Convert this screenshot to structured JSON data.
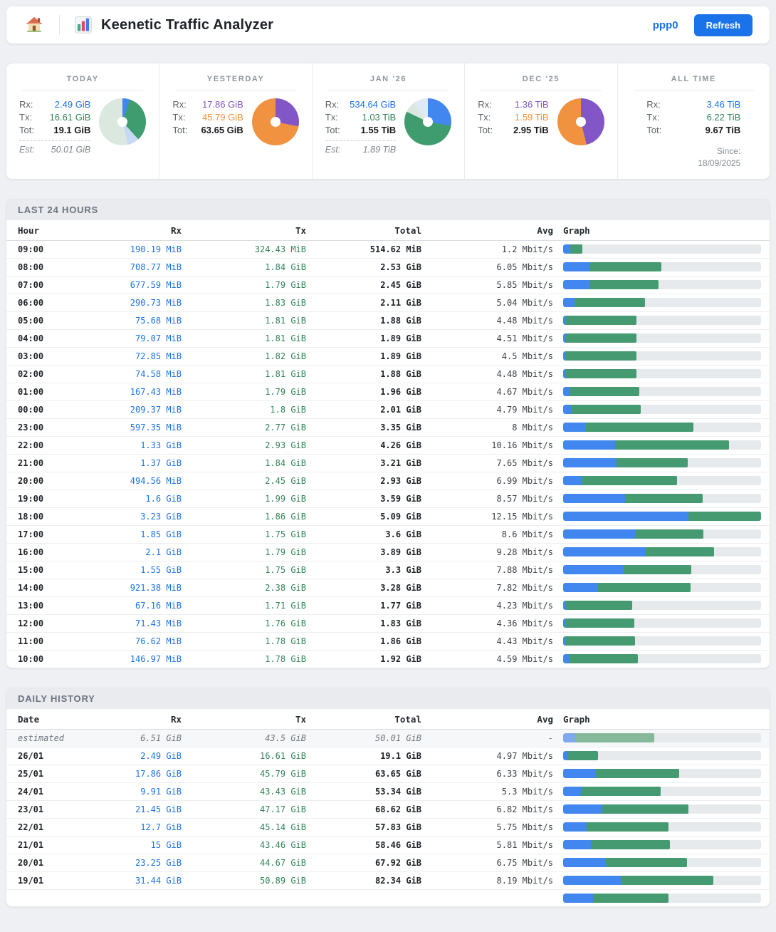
{
  "header": {
    "title": "Keenetic Traffic Analyzer",
    "interface_label": "ppp0",
    "refresh_label": "Refresh"
  },
  "colors": {
    "accent_blue": "#1a73e8",
    "rx_text": "#1a73e8",
    "tx_text": "#2f855a",
    "purple_text": "#7e57c2",
    "orange_text": "#ef8f3a",
    "bar_rx": "#4287f0",
    "bar_tx": "#459a71",
    "bar_rx_pale": "#7fa9ea",
    "bar_tx_pale": "#85b999"
  },
  "cards": [
    {
      "title": "TODAY",
      "stats": [
        {
          "label": "Rx:",
          "value": "2.49 GiB",
          "color": "#1a73e8"
        },
        {
          "label": "Tx:",
          "value": "16.61 GiB",
          "color": "#2f855a"
        },
        {
          "label": "Tot:",
          "value": "19.1 GiB",
          "bold": true
        }
      ],
      "est": {
        "label": "Est:",
        "value": "50.01 GiB"
      },
      "donut": [
        {
          "color": "#4287f0",
          "pct": 5.0
        },
        {
          "color": "#3f9c6e",
          "pct": 33.2
        },
        {
          "color": "#c7d9f5",
          "pct": 8.0
        },
        {
          "color": "#dbe8df",
          "pct": 53.8
        }
      ]
    },
    {
      "title": "YESTERDAY",
      "stats": [
        {
          "label": "Rx:",
          "value": "17.86 GiB",
          "color": "#7e57c2"
        },
        {
          "label": "Tx:",
          "value": "45.79 GiB",
          "color": "#ef8f3a"
        },
        {
          "label": "Tot:",
          "value": "63.65 GiB",
          "bold": true
        }
      ],
      "donut": [
        {
          "color": "#8356c8",
          "pct": 28.1
        },
        {
          "color": "#f0923f",
          "pct": 71.9
        }
      ]
    },
    {
      "title": "JAN '26",
      "stats": [
        {
          "label": "Rx:",
          "value": "534.64 GiB",
          "color": "#1a73e8"
        },
        {
          "label": "Tx:",
          "value": "1.03 TiB",
          "color": "#2f855a"
        },
        {
          "label": "Tot:",
          "value": "1.55 TiB",
          "bold": true
        }
      ],
      "est": {
        "label": "Est:",
        "value": "1.89 TiB"
      },
      "donut": [
        {
          "color": "#4287f0",
          "pct": 27.6
        },
        {
          "color": "#3f9c6e",
          "pct": 54.5
        },
        {
          "color": "#dbe8df",
          "pct": 7.4
        },
        {
          "color": "#dfe9f6",
          "pct": 10.5
        }
      ]
    },
    {
      "title": "DEC '25",
      "stats": [
        {
          "label": "Rx:",
          "value": "1.36 TiB",
          "color": "#7e57c2"
        },
        {
          "label": "Tx:",
          "value": "1.59 TiB",
          "color": "#ef8f3a"
        },
        {
          "label": "Tot:",
          "value": "2.95 TiB",
          "bold": true
        }
      ],
      "donut": [
        {
          "color": "#8356c8",
          "pct": 46.1
        },
        {
          "color": "#f0923f",
          "pct": 53.9
        }
      ]
    },
    {
      "title": "ALL TIME",
      "stats": [
        {
          "label": "Rx:",
          "value": "3.46 TiB",
          "color": "#1a73e8"
        },
        {
          "label": "Tx:",
          "value": "6.22 TiB",
          "color": "#2f855a"
        },
        {
          "label": "Tot:",
          "value": "9.67 TiB",
          "bold": true
        }
      ],
      "since": {
        "label": "Since:",
        "value": "18/09/2025"
      }
    }
  ],
  "hourly": {
    "section_title": "LAST 24 HOURS",
    "columns": [
      "Hour",
      "Rx",
      "Tx",
      "Total",
      "Avg",
      "Graph"
    ],
    "scale_max_gib": 5.09,
    "rows": [
      {
        "label": "09:00",
        "rx": "190.19 MiB",
        "tx": "324.43 MiB",
        "total": "514.62 MiB",
        "avg": "1.2 Mbit/s",
        "rx_gib": 0.186,
        "tx_gib": 0.317
      },
      {
        "label": "08:00",
        "rx": "708.77 MiB",
        "tx": "1.84 GiB",
        "total": "2.53 GiB",
        "avg": "6.05 Mbit/s",
        "rx_gib": 0.692,
        "tx_gib": 1.84
      },
      {
        "label": "07:00",
        "rx": "677.59 MiB",
        "tx": "1.79 GiB",
        "total": "2.45 GiB",
        "avg": "5.85 Mbit/s",
        "rx_gib": 0.662,
        "tx_gib": 1.79
      },
      {
        "label": "06:00",
        "rx": "290.73 MiB",
        "tx": "1.83 GiB",
        "total": "2.11 GiB",
        "avg": "5.04 Mbit/s",
        "rx_gib": 0.284,
        "tx_gib": 1.83
      },
      {
        "label": "05:00",
        "rx": "75.68 MiB",
        "tx": "1.81 GiB",
        "total": "1.88 GiB",
        "avg": "4.48 Mbit/s",
        "rx_gib": 0.074,
        "tx_gib": 1.81
      },
      {
        "label": "04:00",
        "rx": "79.07 MiB",
        "tx": "1.81 GiB",
        "total": "1.89 GiB",
        "avg": "4.51 Mbit/s",
        "rx_gib": 0.077,
        "tx_gib": 1.81
      },
      {
        "label": "03:00",
        "rx": "72.85 MiB",
        "tx": "1.82 GiB",
        "total": "1.89 GiB",
        "avg": "4.5 Mbit/s",
        "rx_gib": 0.071,
        "tx_gib": 1.82
      },
      {
        "label": "02:00",
        "rx": "74.58 MiB",
        "tx": "1.81 GiB",
        "total": "1.88 GiB",
        "avg": "4.48 Mbit/s",
        "rx_gib": 0.073,
        "tx_gib": 1.81
      },
      {
        "label": "01:00",
        "rx": "167.43 MiB",
        "tx": "1.79 GiB",
        "total": "1.96 GiB",
        "avg": "4.67 Mbit/s",
        "rx_gib": 0.164,
        "tx_gib": 1.79
      },
      {
        "label": "00:00",
        "rx": "209.37 MiB",
        "tx": "1.8 GiB",
        "total": "2.01 GiB",
        "avg": "4.79 Mbit/s",
        "rx_gib": 0.204,
        "tx_gib": 1.8
      },
      {
        "label": "23:00",
        "rx": "597.35 MiB",
        "tx": "2.77 GiB",
        "total": "3.35 GiB",
        "avg": "8 Mbit/s",
        "rx_gib": 0.583,
        "tx_gib": 2.77
      },
      {
        "label": "22:00",
        "rx": "1.33 GiB",
        "tx": "2.93 GiB",
        "total": "4.26 GiB",
        "avg": "10.16 Mbit/s",
        "rx_gib": 1.33,
        "tx_gib": 2.93
      },
      {
        "label": "21:00",
        "rx": "1.37 GiB",
        "tx": "1.84 GiB",
        "total": "3.21 GiB",
        "avg": "7.65 Mbit/s",
        "rx_gib": 1.37,
        "tx_gib": 1.84
      },
      {
        "label": "20:00",
        "rx": "494.56 MiB",
        "tx": "2.45 GiB",
        "total": "2.93 GiB",
        "avg": "6.99 Mbit/s",
        "rx_gib": 0.483,
        "tx_gib": 2.45
      },
      {
        "label": "19:00",
        "rx": "1.6 GiB",
        "tx": "1.99 GiB",
        "total": "3.59 GiB",
        "avg": "8.57 Mbit/s",
        "rx_gib": 1.6,
        "tx_gib": 1.99
      },
      {
        "label": "18:00",
        "rx": "3.23 GiB",
        "tx": "1.86 GiB",
        "total": "5.09 GiB",
        "avg": "12.15 Mbit/s",
        "rx_gib": 3.23,
        "tx_gib": 1.86
      },
      {
        "label": "17:00",
        "rx": "1.85 GiB",
        "tx": "1.75 GiB",
        "total": "3.6 GiB",
        "avg": "8.6 Mbit/s",
        "rx_gib": 1.85,
        "tx_gib": 1.75
      },
      {
        "label": "16:00",
        "rx": "2.1 GiB",
        "tx": "1.79 GiB",
        "total": "3.89 GiB",
        "avg": "9.28 Mbit/s",
        "rx_gib": 2.1,
        "tx_gib": 1.79
      },
      {
        "label": "15:00",
        "rx": "1.55 GiB",
        "tx": "1.75 GiB",
        "total": "3.3 GiB",
        "avg": "7.88 Mbit/s",
        "rx_gib": 1.55,
        "tx_gib": 1.75
      },
      {
        "label": "14:00",
        "rx": "921.38 MiB",
        "tx": "2.38 GiB",
        "total": "3.28 GiB",
        "avg": "7.82 Mbit/s",
        "rx_gib": 0.9,
        "tx_gib": 2.38
      },
      {
        "label": "13:00",
        "rx": "67.16 MiB",
        "tx": "1.71 GiB",
        "total": "1.77 GiB",
        "avg": "4.23 Mbit/s",
        "rx_gib": 0.066,
        "tx_gib": 1.71
      },
      {
        "label": "12:00",
        "rx": "71.43 MiB",
        "tx": "1.76 GiB",
        "total": "1.83 GiB",
        "avg": "4.36 Mbit/s",
        "rx_gib": 0.07,
        "tx_gib": 1.76
      },
      {
        "label": "11:00",
        "rx": "76.62 MiB",
        "tx": "1.78 GiB",
        "total": "1.86 GiB",
        "avg": "4.43 Mbit/s",
        "rx_gib": 0.075,
        "tx_gib": 1.78
      },
      {
        "label": "10:00",
        "rx": "146.97 MiB",
        "tx": "1.78 GiB",
        "total": "1.92 GiB",
        "avg": "4.59 Mbit/s",
        "rx_gib": 0.144,
        "tx_gib": 1.78
      }
    ]
  },
  "daily": {
    "section_title": "DAILY HISTORY",
    "columns": [
      "Date",
      "Rx",
      "Tx",
      "Total",
      "Avg",
      "Graph"
    ],
    "scale_max_gib": 108.3,
    "rows": [
      {
        "label": "estimated",
        "rx": "6.51 GiB",
        "tx": "43.5 GiB",
        "total": "50.01 GiB",
        "avg": "-",
        "rx_gib": 6.51,
        "tx_gib": 43.5,
        "estimated": true
      },
      {
        "label": "26/01",
        "rx": "2.49 GiB",
        "tx": "16.61 GiB",
        "total": "19.1 GiB",
        "avg": "4.97 Mbit/s",
        "rx_gib": 2.49,
        "tx_gib": 16.61
      },
      {
        "label": "25/01",
        "rx": "17.86 GiB",
        "tx": "45.79 GiB",
        "total": "63.65 GiB",
        "avg": "6.33 Mbit/s",
        "rx_gib": 17.86,
        "tx_gib": 45.79
      },
      {
        "label": "24/01",
        "rx": "9.91 GiB",
        "tx": "43.43 GiB",
        "total": "53.34 GiB",
        "avg": "5.3 Mbit/s",
        "rx_gib": 9.91,
        "tx_gib": 43.43
      },
      {
        "label": "23/01",
        "rx": "21.45 GiB",
        "tx": "47.17 GiB",
        "total": "68.62 GiB",
        "avg": "6.82 Mbit/s",
        "rx_gib": 21.45,
        "tx_gib": 47.17
      },
      {
        "label": "22/01",
        "rx": "12.7 GiB",
        "tx": "45.14 GiB",
        "total": "57.83 GiB",
        "avg": "5.75 Mbit/s",
        "rx_gib": 12.7,
        "tx_gib": 45.14
      },
      {
        "label": "21/01",
        "rx": "15 GiB",
        "tx": "43.46 GiB",
        "total": "58.46 GiB",
        "avg": "5.81 Mbit/s",
        "rx_gib": 15,
        "tx_gib": 43.46
      },
      {
        "label": "20/01",
        "rx": "23.25 GiB",
        "tx": "44.67 GiB",
        "total": "67.92 GiB",
        "avg": "6.75 Mbit/s",
        "rx_gib": 23.25,
        "tx_gib": 44.67
      },
      {
        "label": "19/01",
        "rx": "31.44 GiB",
        "tx": "50.89 GiB",
        "total": "82.34 GiB",
        "avg": "8.19 Mbit/s",
        "rx_gib": 31.44,
        "tx_gib": 50.89
      },
      {
        "label": "",
        "rx": "",
        "tx": "",
        "total": "",
        "avg": "",
        "rx_gib": 16.2,
        "tx_gib": 41.5
      }
    ]
  }
}
